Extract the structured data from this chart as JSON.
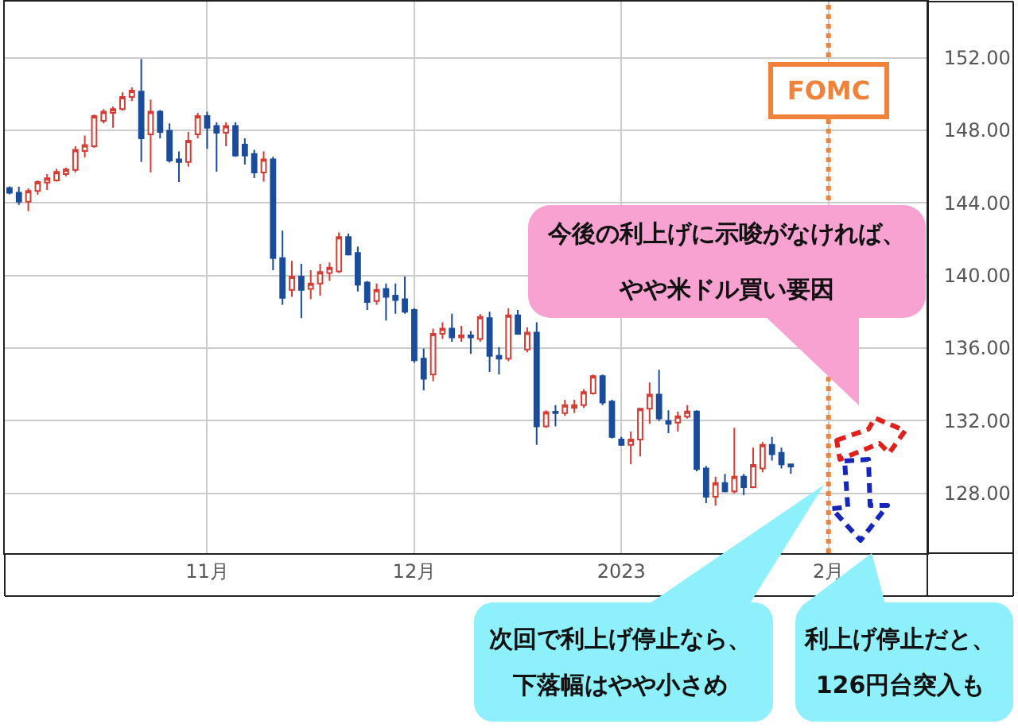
{
  "chart_data": {
    "type": "candlestick",
    "categories": [
      null,
      null,
      null,
      null,
      null,
      null,
      null,
      null,
      null,
      null,
      null,
      null,
      null,
      null,
      null,
      null,
      null,
      null,
      null,
      null,
      null,
      "11月",
      null,
      null,
      null,
      null,
      null,
      null,
      null,
      null,
      null,
      null,
      null,
      null,
      null,
      null,
      null,
      null,
      null,
      null,
      null,
      null,
      null,
      "12月",
      null,
      null,
      null,
      null,
      null,
      null,
      null,
      null,
      null,
      null,
      null,
      null,
      null,
      null,
      null,
      null,
      null,
      null,
      null,
      null,
      null,
      "2023",
      null,
      null,
      null,
      null,
      null,
      null,
      null,
      null,
      null,
      null,
      null,
      null,
      null,
      null,
      null,
      null,
      null,
      null,
      null,
      null,
      null,
      "2月",
      null,
      null,
      null,
      null,
      null,
      null,
      null,
      null,
      null,
      null
    ],
    "ohlc": [
      [
        144.83,
        144.92,
        144.48,
        144.57
      ],
      [
        144.57,
        144.89,
        143.9,
        144.07
      ],
      [
        144.07,
        144.81,
        143.55,
        144.66
      ],
      [
        144.66,
        145.24,
        144.46,
        145.16
      ],
      [
        145.12,
        145.59,
        144.72,
        145.36
      ],
      [
        145.24,
        145.88,
        145.18,
        145.71
      ],
      [
        145.59,
        145.94,
        145.47,
        145.85
      ],
      [
        145.82,
        147.13,
        145.68,
        146.93
      ],
      [
        146.87,
        147.72,
        146.52,
        147.19
      ],
      [
        147.13,
        148.88,
        147.04,
        148.79
      ],
      [
        148.53,
        149.18,
        148.39,
        149.03
      ],
      [
        148.97,
        149.32,
        148.15,
        149.18
      ],
      [
        149.18,
        150.1,
        149.09,
        149.84
      ],
      [
        149.84,
        150.37,
        149.61,
        150.19
      ],
      [
        150.14,
        151.94,
        146.26,
        147.57
      ],
      [
        147.78,
        149.7,
        145.68,
        149.03
      ],
      [
        149.03,
        149.12,
        147.57,
        147.92
      ],
      [
        147.98,
        148.39,
        146.23,
        146.34
      ],
      [
        146.41,
        146.84,
        145.16,
        146.26
      ],
      [
        146.26,
        147.92,
        146.0,
        147.43
      ],
      [
        147.78,
        148.97,
        147.57,
        148.79
      ],
      [
        148.79,
        149.03,
        146.99,
        148.15
      ],
      [
        148.24,
        148.44,
        145.73,
        147.87
      ],
      [
        147.87,
        148.44,
        147.13,
        148.24
      ],
      [
        148.24,
        148.44,
        146.55,
        146.61
      ],
      [
        147.22,
        147.57,
        146.12,
        146.61
      ],
      [
        146.7,
        146.93,
        145.38,
        145.68
      ],
      [
        145.68,
        146.84,
        145.18,
        146.41
      ],
      [
        146.41,
        146.55,
        140.29,
        140.96
      ],
      [
        140.96,
        142.47,
        138.39,
        138.77
      ],
      [
        139.21,
        140.81,
        138.83,
        139.94
      ],
      [
        139.94,
        140.64,
        137.66,
        139.21
      ],
      [
        139.26,
        140.29,
        138.69,
        139.56
      ],
      [
        139.56,
        140.64,
        138.89,
        140.2
      ],
      [
        140.14,
        140.72,
        139.7,
        140.44
      ],
      [
        140.23,
        142.38,
        140.14,
        142.12
      ],
      [
        142.12,
        142.32,
        141.1,
        141.16
      ],
      [
        141.25,
        141.6,
        139.12,
        139.5
      ],
      [
        139.61,
        139.7,
        138.1,
        138.54
      ],
      [
        138.6,
        139.56,
        138.39,
        139.21
      ],
      [
        139.27,
        139.56,
        137.52,
        138.83
      ],
      [
        138.89,
        139.56,
        137.9,
        138.65
      ],
      [
        138.69,
        139.94,
        137.9,
        138.01
      ],
      [
        138.1,
        138.2,
        135.19,
        135.33
      ],
      [
        135.42,
        135.98,
        133.67,
        134.32
      ],
      [
        134.54,
        137.08,
        134.17,
        136.79
      ],
      [
        136.79,
        137.43,
        136.5,
        137.08
      ],
      [
        137.08,
        137.9,
        136.35,
        136.59
      ],
      [
        136.59,
        137.23,
        136.35,
        136.7
      ],
      [
        136.7,
        136.94,
        135.68,
        136.59
      ],
      [
        136.5,
        137.87,
        136.35,
        137.72
      ],
      [
        137.66,
        138.01,
        134.69,
        135.57
      ],
      [
        135.57,
        136.06,
        134.54,
        135.42
      ],
      [
        135.42,
        138.19,
        135.28,
        137.81
      ],
      [
        137.81,
        138.1,
        136.73,
        136.79
      ],
      [
        135.92,
        137.14,
        135.77,
        136.85
      ],
      [
        136.85,
        137.43,
        130.67,
        131.69
      ],
      [
        131.69,
        132.57,
        131.61,
        132.48
      ],
      [
        132.5,
        132.86,
        131.69,
        132.42
      ],
      [
        132.42,
        133.15,
        132.27,
        132.86
      ],
      [
        132.72,
        133.15,
        132.42,
        132.86
      ],
      [
        132.86,
        133.73,
        132.71,
        133.58
      ],
      [
        133.5,
        134.54,
        133.44,
        134.46
      ],
      [
        134.46,
        134.54,
        132.86,
        133.0
      ],
      [
        133.06,
        133.15,
        131.02,
        131.11
      ],
      [
        130.96,
        131.11,
        130.61,
        130.67
      ],
      [
        130.67,
        131.4,
        129.6,
        130.96
      ],
      [
        130.96,
        132.71,
        130.03,
        132.66
      ],
      [
        132.66,
        134.11,
        131.83,
        133.44
      ],
      [
        133.44,
        134.81,
        131.98,
        132.13
      ],
      [
        131.98,
        132.57,
        131.31,
        131.83
      ],
      [
        131.9,
        132.51,
        131.4,
        132.24
      ],
      [
        132.22,
        132.86,
        132.13,
        132.51
      ],
      [
        132.51,
        132.57,
        129.21,
        129.33
      ],
      [
        129.36,
        129.51,
        127.46,
        127.81
      ],
      [
        127.81,
        128.92,
        127.32,
        128.57
      ],
      [
        128.57,
        129.07,
        128.05,
        128.11
      ],
      [
        128.11,
        131.61,
        127.99,
        128.92
      ],
      [
        128.92,
        129.07,
        127.9,
        128.34
      ],
      [
        128.34,
        130.52,
        128.28,
        129.56
      ],
      [
        129.36,
        130.82,
        129.16,
        130.67
      ],
      [
        130.67,
        131.11,
        129.8,
        130.15
      ],
      [
        130.23,
        130.52,
        129.36,
        129.6
      ],
      [
        129.6,
        129.6,
        129.07,
        129.48
      ],
      null,
      null,
      null,
      null,
      null,
      null,
      null,
      null,
      null,
      null,
      null,
      null,
      null,
      null
    ],
    "colors": [
      "#1a4c9b",
      "#1a4c9b",
      "#d43c34",
      "#d43c34",
      "#d43c34",
      "#d43c34",
      "#d43c34",
      "#d43c34",
      "#d43c34",
      "#d43c34",
      "#d43c34",
      "#d43c34",
      "#d43c34",
      "#d43c34",
      "#1a4c9b",
      "#d43c34",
      "#1a4c9b",
      "#1a4c9b",
      "#1a4c9b",
      "#d43c34",
      "#d43c34",
      "#1a4c9b",
      "#1a4c9b",
      "#d43c34",
      "#1a4c9b",
      "#1a4c9b",
      "#1a4c9b",
      "#d43c34",
      "#1a4c9b",
      "#1a4c9b",
      "#d43c34",
      "#1a4c9b",
      "#d43c34",
      "#d43c34",
      "#d43c34",
      "#d43c34",
      "#1a4c9b",
      "#1a4c9b",
      "#1a4c9b",
      "#d43c34",
      "#1a4c9b",
      "#1a4c9b",
      "#1a4c9b",
      "#1a4c9b",
      "#1a4c9b",
      "#d43c34",
      "#d43c34",
      "#1a4c9b",
      "#d43c34",
      "#1a4c9b",
      "#d43c34",
      "#1a4c9b",
      "#1a4c9b",
      "#d43c34",
      "#1a4c9b",
      "#d43c34",
      "#1a4c9b",
      "#d43c34",
      "#1a4c9b",
      "#d43c34",
      "#d43c34",
      "#d43c34",
      "#d43c34",
      "#1a4c9b",
      "#1a4c9b",
      "#1a4c9b",
      "#d43c34",
      "#d43c34",
      "#d43c34",
      "#1a4c9b",
      "#1a4c9b",
      "#d43c34",
      "#d43c34",
      "#1a4c9b",
      "#1a4c9b",
      "#d43c34",
      "#1a4c9b",
      "#d43c34",
      "#1a4c9b",
      "#d43c34",
      "#d43c34",
      "#1a4c9b",
      "#1a4c9b",
      "#1a4c9b",
      null,
      null,
      null,
      null,
      null,
      null,
      null,
      null,
      null,
      null,
      null,
      null,
      null,
      null
    ],
    "ylim": [
      124.7,
      155.1
    ],
    "yticks": [
      {
        "value": 128,
        "label": "128.00"
      },
      {
        "value": 132,
        "label": "132.00"
      },
      {
        "value": 136,
        "label": "136.00"
      },
      {
        "value": 140,
        "label": "140.00"
      },
      {
        "value": 144,
        "label": "144.00"
      },
      {
        "value": 148,
        "label": "148.00"
      },
      {
        "value": 152,
        "label": "152.00"
      }
    ],
    "grid": true,
    "ref_lines": [
      {
        "axis": "x",
        "value": "2月",
        "label": "FOMC",
        "color": "#f0823a",
        "line_style": "dotted"
      }
    ],
    "annotations": [
      "今後の利上げに示唆がなければ、やや米ドル買い要因",
      "次回で利上げ停止なら、下落幅はやや小さめ",
      "利上げ停止だと、126円台突入も"
    ]
  }
}
